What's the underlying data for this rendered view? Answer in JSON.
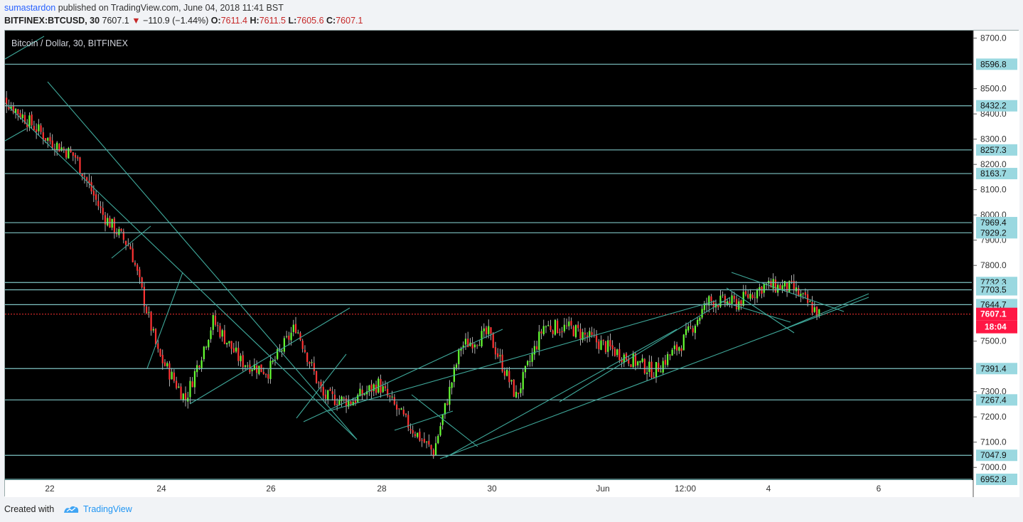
{
  "header": {
    "author": "sumastardon",
    "published_text": "published on TradingView.com, June 04, 2018 11:41 BST",
    "symbol": "BITFINEX:BTCUSD, 30",
    "last_price": "7607.1",
    "change_arrow": "▼",
    "change_text": "−110.9 (−1.44%)",
    "open_label": "O:",
    "open_value": "7611.4",
    "high_label": "H:",
    "high_value": "7611.5",
    "low_label": "L:",
    "low_value": "7605.6",
    "close_label": "C:",
    "close_value": "7607.1"
  },
  "footer": {
    "created_with": "Created with",
    "brand": "TradingView"
  },
  "colors": {
    "background": "#000000",
    "up_candle": "#66ff33",
    "down_candle": "#ff3333",
    "hline": "#7ec3c3",
    "trendline": "#3fa89a",
    "axis_bg": "#ffffff",
    "label_bg": "#9ad8e0",
    "price_label_bg": "#ff1744"
  },
  "chart_data": {
    "type": "candlestick",
    "title": "Bitcoin / Dollar, 30, BITFINEX",
    "ylim": [
      6950,
      8730
    ],
    "y_ticks": [
      "8700.0",
      "8500.0",
      "8400.0",
      "8300.0",
      "8200.0",
      "8100.0",
      "8000.0",
      "7900.0",
      "7800.0",
      "7500.0",
      "7300.0",
      "7200.0",
      "7100.0",
      "7000.0"
    ],
    "x_ticks": [
      "22",
      "24",
      "26",
      "28",
      "30",
      "Jun",
      "12:00",
      "4",
      "6"
    ],
    "horizontal_levels": [
      "8596.8",
      "8432.2",
      "8257.3",
      "8163.7",
      "7969.4",
      "7929.2",
      "7732.3",
      "7703.5",
      "7644.7",
      "7391.4",
      "7267.4",
      "7047.9",
      "6952.8"
    ],
    "current_price": "7607.1",
    "countdown": "18:04",
    "close_path": [
      {
        "x": "May 21",
        "y": 8500
      },
      {
        "x": "May 22",
        "y": 8300
      },
      {
        "x": "May 22 12:00",
        "y": 8230
      },
      {
        "x": "May 23",
        "y": 8000
      },
      {
        "x": "May 23 12:00",
        "y": 7870
      },
      {
        "x": "May 24",
        "y": 7450
      },
      {
        "x": "May 24 12:00",
        "y": 7270
      },
      {
        "x": "May 25",
        "y": 7580
      },
      {
        "x": "May 25 12:00",
        "y": 7420
      },
      {
        "x": "May 26",
        "y": 7380
      },
      {
        "x": "May 26 12:00",
        "y": 7560
      },
      {
        "x": "May 27",
        "y": 7280
      },
      {
        "x": "May 27 12:00",
        "y": 7260
      },
      {
        "x": "May 28",
        "y": 7330
      },
      {
        "x": "May 28 12:00",
        "y": 7180
      },
      {
        "x": "May 29",
        "y": 7060
      },
      {
        "x": "May 29 12:00",
        "y": 7480
      },
      {
        "x": "May 30",
        "y": 7530
      },
      {
        "x": "May 30 12:00",
        "y": 7280
      },
      {
        "x": "May 31",
        "y": 7560
      },
      {
        "x": "May 31 12:00",
        "y": 7550
      },
      {
        "x": "Jun 1",
        "y": 7380
      },
      {
        "x": "Jun 1 12:00",
        "y": 7490
      },
      {
        "x": "Jun 2",
        "y": 7660
      },
      {
        "x": "Jun 2 12:00",
        "y": 7650
      },
      {
        "x": "Jun 3",
        "y": 7720
      },
      {
        "x": "Jun 3 12:00",
        "y": 7710
      },
      {
        "x": "Jun 4",
        "y": 7607.1
      }
    ]
  }
}
